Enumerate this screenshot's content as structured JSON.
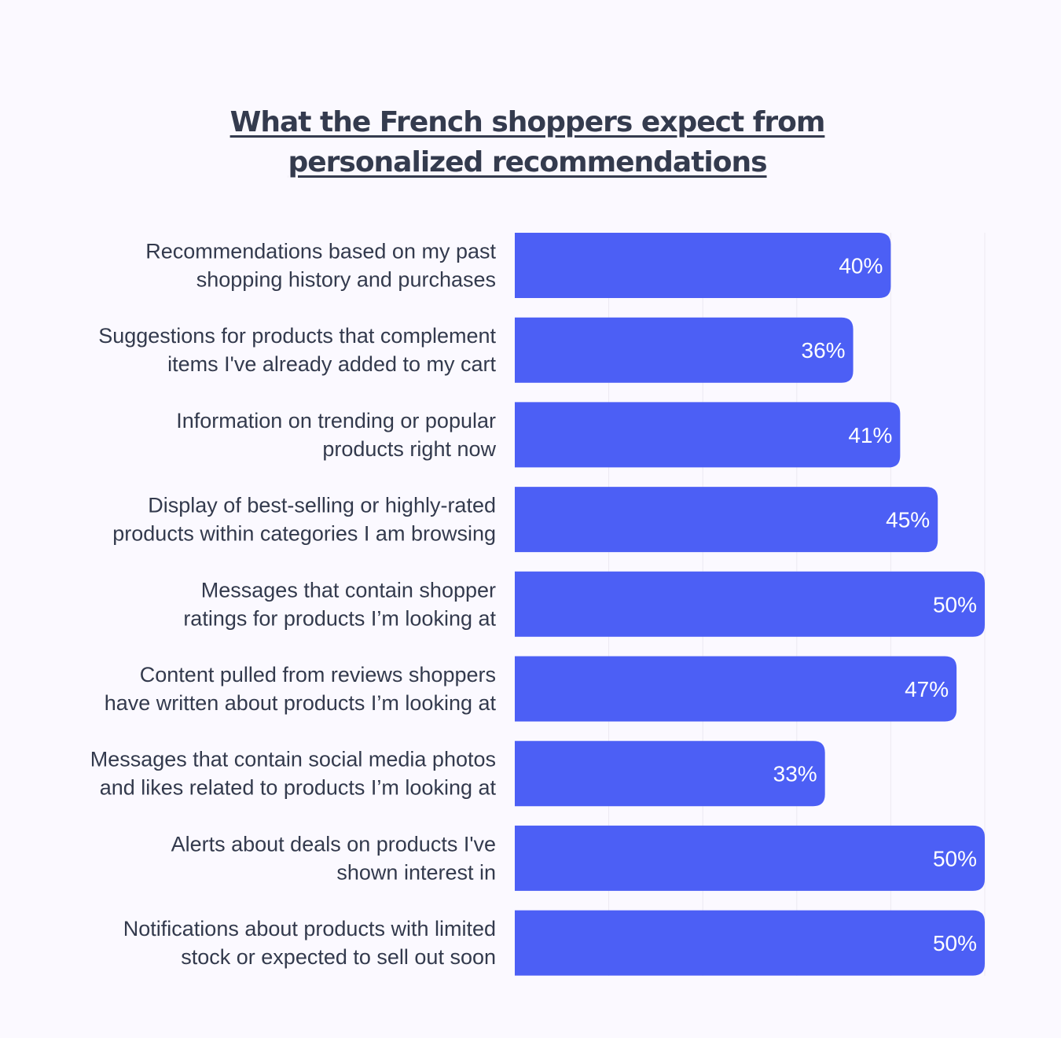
{
  "chart_data": {
    "type": "bar",
    "orientation": "horizontal",
    "title_lines": [
      "What the French shoppers expect from",
      "personalized recommendations"
    ],
    "categories": [
      [
        "Recommendations based on my past",
        "shopping history and purchases"
      ],
      [
        "Suggestions for products that complement",
        "items I've already added to my cart"
      ],
      [
        "Information on trending or popular",
        "products right now"
      ],
      [
        "Display of best-selling or highly-rated",
        "products within categories I am browsing"
      ],
      [
        "Messages that contain shopper",
        "ratings for products I’m looking at"
      ],
      [
        "Content pulled from reviews shoppers",
        "have written about products I’m looking at"
      ],
      [
        "Messages that contain social media photos",
        "and likes related to products I’m looking at"
      ],
      [
        "Alerts about deals on products I've",
        "shown interest in"
      ],
      [
        "Notifications about products with limited",
        "stock or expected to sell out soon"
      ]
    ],
    "values": [
      40,
      36,
      41,
      45,
      50,
      47,
      33,
      50,
      50
    ],
    "value_labels": [
      "40%",
      "36%",
      "41%",
      "45%",
      "50%",
      "47%",
      "33%",
      "50%",
      "50%"
    ],
    "xlim": [
      0,
      50
    ],
    "grid": true,
    "legend": "none",
    "colors": {
      "bar": "#4c5ff5",
      "bar_text": "#ffffff",
      "label_text": "#333a4d",
      "title_text": "#343b4e",
      "grid": "#ece9f2",
      "background": "#fbf9ff"
    }
  }
}
